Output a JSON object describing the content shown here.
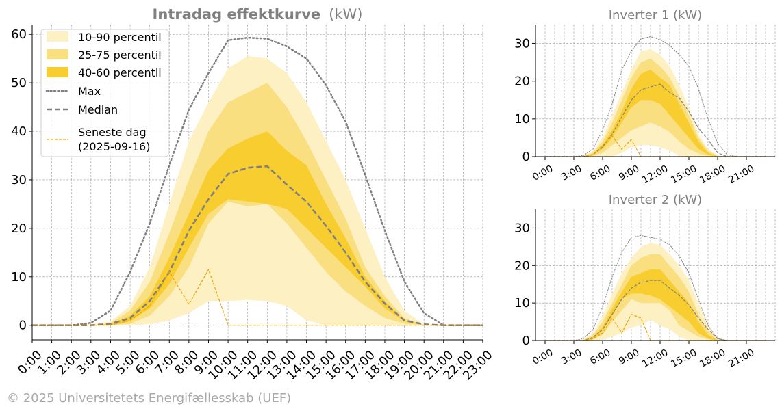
{
  "footer": {
    "copyright": "© 2025 Universitetets Energifællesskab (UEF)"
  },
  "colors": {
    "band_10_90": "#fdf1c4",
    "band_25_75": "#fadf80",
    "band_40_60": "#f8cd30",
    "max_line": "#808080",
    "median_line": "#808080",
    "latest_day": "#f0a000",
    "grid": "#9a9a9a",
    "title": "#808080"
  },
  "chart_data": [
    {
      "id": "main",
      "type": "area",
      "title": "Intradag effektkurve",
      "title_unit": "(kW)",
      "xlabel": "",
      "ylabel": "",
      "x": [
        "0:00",
        "1:00",
        "2:00",
        "3:00",
        "4:00",
        "5:00",
        "6:00",
        "7:00",
        "8:00",
        "9:00",
        "10:00",
        "11:00",
        "12:00",
        "13:00",
        "14:00",
        "15:00",
        "16:00",
        "17:00",
        "18:00",
        "19:00",
        "20:00",
        "21:00",
        "22:00",
        "23:00"
      ],
      "x_tick_labels": [
        "0:00",
        "1:00",
        "2:00",
        "3:00",
        "4:00",
        "5:00",
        "6:00",
        "7:00",
        "8:00",
        "9:00",
        "10:00",
        "11:00",
        "12:00",
        "13:00",
        "14:00",
        "15:00",
        "16:00",
        "17:00",
        "18:00",
        "19:00",
        "20:00",
        "21:00",
        "22:00",
        "23:00"
      ],
      "y_ticks": [
        0,
        10,
        20,
        30,
        40,
        50,
        60
      ],
      "ylim": [
        -3,
        62
      ],
      "grid": true,
      "legend_position": "top-left",
      "legend": [
        "10-90 percentil",
        "25-75 percentil",
        "40-60 percentil",
        "Max",
        "Median",
        "Seneste dag\n(2025-09-16)"
      ],
      "bands": [
        {
          "name": "10-90 percentil",
          "low": [
            0,
            0,
            0,
            0,
            0,
            0,
            0.2,
            1,
            2.5,
            5,
            5,
            5.2,
            5,
            4,
            1,
            0,
            0,
            0,
            0,
            0,
            0,
            0,
            0,
            0
          ],
          "high": [
            0,
            0,
            0,
            0.1,
            0.8,
            4,
            12,
            25,
            38,
            46,
            53,
            55.5,
            55,
            52,
            46,
            38,
            30,
            20,
            10,
            3,
            0.2,
            0,
            0,
            0
          ]
        },
        {
          "name": "25-75 percentil",
          "low": [
            0,
            0,
            0,
            0,
            0,
            0.3,
            2,
            6,
            12,
            21,
            25.5,
            24.5,
            25,
            21,
            16,
            11,
            7,
            4,
            1.5,
            0.3,
            0,
            0,
            0,
            0
          ],
          "high": [
            0,
            0,
            0,
            0,
            0.5,
            3,
            9,
            19,
            30,
            40,
            46,
            48,
            50,
            45,
            38,
            30,
            22,
            12,
            6,
            1.5,
            0,
            0,
            0,
            0
          ]
        },
        {
          "name": "40-60 percentil",
          "low": [
            0,
            0,
            0,
            0,
            0,
            0.8,
            3.5,
            8.5,
            16,
            23,
            26,
            25.5,
            25,
            24,
            20,
            16,
            12,
            8,
            3.5,
            0.8,
            0,
            0,
            0,
            0
          ],
          "high": [
            0,
            0,
            0,
            0,
            0.2,
            2,
            6,
            14,
            23,
            32,
            36.5,
            38.5,
            40,
            36,
            33,
            25,
            18,
            10,
            5,
            1,
            0,
            0,
            0,
            0
          ]
        }
      ],
      "series": [
        {
          "name": "Max",
          "style": "dotted",
          "values": [
            0,
            0,
            0,
            0.5,
            3,
            11,
            21,
            33,
            44.5,
            52,
            58.8,
            59.3,
            59.1,
            57.5,
            55,
            49.5,
            42,
            31,
            19.5,
            9,
            2.5,
            0,
            0,
            0
          ]
        },
        {
          "name": "Median",
          "style": "dashed",
          "values": [
            0,
            0,
            0,
            0,
            0.3,
            1.5,
            5,
            11,
            19.5,
            26,
            31.2,
            32.5,
            32.8,
            29,
            25.5,
            20.5,
            15,
            9,
            4.5,
            1,
            0.2,
            0,
            0,
            0
          ]
        },
        {
          "name": "Seneste dag\n(2025-09-16)",
          "style": "dashed-thin",
          "values": [
            0,
            0,
            0,
            0,
            0,
            1,
            4,
            11,
            4.3,
            11.5,
            0,
            0,
            0,
            0,
            0,
            0,
            0,
            0,
            0,
            0,
            0,
            0,
            0,
            0
          ]
        }
      ]
    },
    {
      "id": "inv1",
      "type": "area",
      "title": "Inverter 1 (kW)",
      "x_hours": [
        0,
        1,
        2,
        3,
        4,
        5,
        6,
        7,
        8,
        9,
        10,
        11,
        12,
        13,
        14,
        15,
        16,
        17,
        18,
        19,
        20,
        21,
        22,
        23
      ],
      "x_tick_labels": [
        "0:00",
        "3:00",
        "6:00",
        "9:00",
        "12:00",
        "15:00",
        "18:00",
        "21:00"
      ],
      "y_ticks": [
        0,
        10,
        20,
        30
      ],
      "ylim": [
        0,
        35
      ],
      "grid": true,
      "bands": [
        {
          "name": "10-90 percentil",
          "low": [
            0,
            0,
            0,
            0,
            0,
            0,
            0,
            0,
            1,
            2.5,
            3,
            3,
            2.5,
            1.5,
            0.3,
            0,
            0,
            0,
            0,
            0,
            0,
            0,
            0,
            0
          ],
          "high": [
            0,
            0,
            0,
            0,
            0.2,
            1.5,
            5,
            11,
            17,
            23,
            28,
            28.5,
            27,
            24,
            19,
            13,
            6,
            2,
            0.3,
            0,
            0,
            0,
            0,
            0
          ]
        },
        {
          "name": "25-75 percentil",
          "low": [
            0,
            0,
            0,
            0,
            0,
            0.2,
            1,
            3,
            5,
            7,
            8,
            9,
            8,
            6.5,
            4,
            2,
            0.8,
            0.2,
            0,
            0,
            0,
            0,
            0,
            0
          ],
          "high": [
            0,
            0,
            0,
            0,
            0.1,
            1,
            4,
            9,
            15,
            21,
            25,
            26,
            24,
            21,
            16,
            11,
            5,
            1.5,
            0.2,
            0,
            0,
            0,
            0,
            0
          ]
        },
        {
          "name": "40-60 percentil",
          "low": [
            0,
            0,
            0,
            0,
            0,
            0.5,
            2,
            5,
            9,
            13,
            15,
            15,
            14,
            11,
            8,
            5,
            2,
            0.5,
            0,
            0,
            0,
            0,
            0,
            0
          ],
          "high": [
            0,
            0,
            0,
            0,
            0.1,
            0.8,
            3,
            7,
            12,
            18,
            22,
            23,
            21,
            19,
            14,
            9,
            4,
            1,
            0.1,
            0,
            0,
            0,
            0,
            0
          ]
        }
      ],
      "series": [
        {
          "name": "Max",
          "style": "dotted",
          "values": [
            0,
            0,
            0,
            0,
            0.3,
            2,
            7,
            14,
            23,
            28,
            31.2,
            31.8,
            31,
            29.5,
            27,
            24,
            18,
            10,
            3.5,
            0.5,
            0,
            0,
            0,
            0
          ]
        },
        {
          "name": "Median",
          "style": "dashed",
          "values": [
            0,
            0,
            0,
            0,
            0,
            0.5,
            2.5,
            6,
            10.5,
            15,
            17.7,
            18.5,
            19.2,
            17,
            15.5,
            12,
            7.5,
            4.5,
            1,
            0,
            0,
            0,
            0,
            0
          ]
        },
        {
          "name": "Seneste dag",
          "style": "dashed-thin",
          "values": [
            0,
            0,
            0,
            0,
            0,
            0.5,
            3,
            5.5,
            2,
            4.5,
            0,
            0,
            0,
            0,
            0,
            0,
            0,
            0,
            0,
            0,
            0,
            0,
            0,
            0
          ]
        }
      ]
    },
    {
      "id": "inv2",
      "type": "area",
      "title": "Inverter 2 (kW)",
      "x_hours": [
        0,
        1,
        2,
        3,
        4,
        5,
        6,
        7,
        8,
        9,
        10,
        11,
        12,
        13,
        14,
        15,
        16,
        17,
        18,
        19,
        20,
        21,
        22,
        23
      ],
      "x_tick_labels": [
        "0:00",
        "3:00",
        "6:00",
        "9:00",
        "12:00",
        "15:00",
        "18:00",
        "21:00"
      ],
      "y_ticks": [
        0,
        10,
        20,
        30
      ],
      "ylim": [
        0,
        35
      ],
      "grid": true,
      "bands": [
        {
          "name": "10-90 percentil",
          "low": [
            0,
            0,
            0,
            0,
            0,
            0,
            0.1,
            1,
            2,
            3.5,
            4,
            5.5,
            4,
            3,
            1,
            0,
            0,
            0,
            0,
            0,
            0,
            0,
            0,
            0
          ],
          "high": [
            0,
            0,
            0,
            0,
            0.2,
            2,
            6.5,
            12.5,
            18,
            22,
            25,
            26,
            25.5,
            23,
            20,
            16,
            10,
            4,
            0.5,
            0,
            0,
            0,
            0,
            0
          ]
        },
        {
          "name": "25-75 percentil",
          "low": [
            0,
            0,
            0,
            0,
            0,
            0.2,
            1.5,
            5,
            8,
            11,
            10,
            10,
            10,
            8,
            4,
            2.5,
            1,
            0.3,
            0,
            0,
            0,
            0,
            0,
            0
          ],
          "high": [
            0,
            0,
            0,
            0,
            0.1,
            1.5,
            5,
            10,
            15,
            20,
            22,
            23,
            23,
            20,
            17,
            13,
            7,
            2.5,
            0.2,
            0,
            0,
            0,
            0,
            0
          ]
        },
        {
          "name": "40-60 percentil",
          "low": [
            0,
            0,
            0,
            0,
            0,
            0.5,
            2.5,
            6.5,
            11,
            12.5,
            12.5,
            12,
            11,
            9,
            7,
            5,
            2,
            0.5,
            0,
            0,
            0,
            0,
            0,
            0
          ],
          "high": [
            0,
            0,
            0,
            0,
            0.1,
            1,
            3.5,
            8.5,
            13,
            17,
            18,
            19,
            19,
            16,
            13,
            10,
            5,
            1.5,
            0.1,
            0,
            0,
            0,
            0,
            0
          ]
        }
      ],
      "series": [
        {
          "name": "Max",
          "style": "dotted",
          "values": [
            0,
            0,
            0,
            0,
            0.5,
            3,
            9,
            17,
            23.5,
            27.5,
            28,
            27.5,
            27,
            25.5,
            22.5,
            18,
            11,
            4,
            0.5,
            0,
            0,
            0,
            0,
            0
          ]
        },
        {
          "name": "Median",
          "style": "dashed",
          "values": [
            0,
            0,
            0,
            0,
            0,
            0.8,
            3,
            7,
            11,
            14,
            15.5,
            16,
            16,
            14,
            12,
            9.5,
            6,
            3,
            0.5,
            0,
            0,
            0,
            0,
            0
          ]
        },
        {
          "name": "Seneste dag",
          "style": "dashed-thin",
          "values": [
            0,
            0,
            0,
            0,
            0,
            0.5,
            2,
            6,
            2,
            7,
            6,
            0,
            0,
            0,
            0,
            0,
            0,
            0,
            0,
            0,
            0,
            0,
            0,
            0
          ]
        }
      ]
    }
  ]
}
